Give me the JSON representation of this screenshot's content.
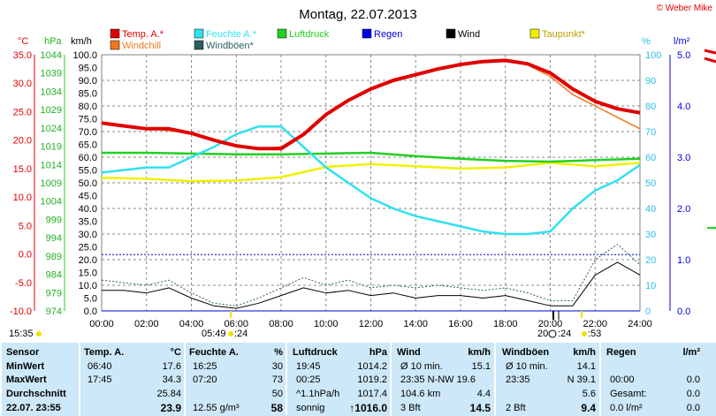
{
  "title": "Montag, 22.07.2013",
  "copyright": "© Weber Mike",
  "left_axis_units": {
    "temp": "°C",
    "press": "hPa",
    "speed": "km/h"
  },
  "right_axis_units": {
    "humidity": "%",
    "rain": "l/m²"
  },
  "legend": [
    {
      "label": "Temp. A.*",
      "color": "#e00000"
    },
    {
      "label": "Windchill",
      "color": "#f07820"
    },
    {
      "label": "Feuchte A.*",
      "color": "#30e0f0"
    },
    {
      "label": "Windböen*",
      "color": "#2a5f60"
    },
    {
      "label": "Luftdruck",
      "color": "#20d020"
    },
    {
      "label": "Regen",
      "color": "#0000e0"
    },
    {
      "label": "Wind",
      "color": "#000000"
    },
    {
      "label": "Taupunkt*",
      "color": "#f0f000"
    }
  ],
  "time_marks": {
    "left_time": "15:35",
    "sunrise": "05:49",
    "sunrise_sfx": ":24",
    "sunset": "20:",
    "sunset_sfx": ":24",
    "moon_sfx": ":53"
  },
  "chart_data": {
    "type": "line",
    "title": "Montag, 22.07.2013",
    "x_ticks": [
      "00:00",
      "02:00",
      "04:00",
      "06:00",
      "08:00",
      "10:00",
      "12:00",
      "14:00",
      "16:00",
      "18:00",
      "20:00",
      "22:00",
      "24:00"
    ],
    "y_left_temp_ticks": [
      "35.0",
      "30.0",
      "25.0",
      "20.0",
      "15.0",
      "10.0",
      "5.0",
      "0.0",
      "-5.0",
      "-10.0"
    ],
    "y_left_press_ticks": [
      "1044",
      "1039",
      "1034",
      "1029",
      "1024",
      "1019",
      "1014",
      "1009",
      "1004",
      "999",
      "994",
      "989",
      "984",
      "979",
      "974"
    ],
    "y_left_speed_ticks": [
      "100.0",
      "95.0",
      "90.0",
      "85.0",
      "80.0",
      "75.0",
      "70.0",
      "65.0",
      "60.0",
      "55.0",
      "50.0",
      "45.0",
      "40.0",
      "35.0",
      "30.0",
      "25.0",
      "20.0",
      "15.0",
      "10.0",
      "5.0",
      "0.0"
    ],
    "y_right_humidity_ticks": [
      "100",
      "90",
      "80",
      "70",
      "60",
      "50",
      "40",
      "30",
      "20",
      "10",
      "0"
    ],
    "y_right_rain_ticks": [
      "5.0",
      "4.0",
      "3.0",
      "2.0",
      "1.0",
      "0.0"
    ],
    "ylim_temp": [
      -10,
      35
    ],
    "ylim_press": [
      974,
      1044
    ],
    "ylim_speed": [
      0,
      100
    ],
    "ylim_humidity": [
      0,
      100
    ],
    "ylim_rain": [
      0,
      5
    ],
    "series": [
      {
        "name": "Temp. A.*",
        "axis": "temp",
        "x_hours": [
          0,
          1,
          2,
          3,
          4,
          5,
          6,
          7,
          8,
          9,
          10,
          11,
          12,
          13,
          14,
          15,
          16,
          17,
          18,
          19,
          20,
          21,
          22,
          23,
          24
        ],
        "values": [
          23.0,
          22.5,
          22.0,
          22.0,
          21.2,
          20.0,
          19.0,
          18.5,
          18.5,
          21.0,
          24.5,
          27.0,
          29.0,
          30.5,
          31.5,
          32.5,
          33.3,
          33.8,
          34.0,
          33.4,
          31.8,
          29.0,
          26.8,
          25.5,
          24.8
        ]
      },
      {
        "name": "Windchill",
        "axis": "temp",
        "x_hours": [
          0,
          4,
          6,
          7,
          8,
          9,
          10,
          12,
          14,
          16,
          18,
          19,
          20,
          21,
          22,
          23,
          24
        ],
        "values": [
          23.0,
          21.2,
          19.0,
          18.5,
          18.8,
          21.2,
          24.6,
          29.0,
          31.5,
          33.3,
          34.0,
          33.2,
          31.2,
          28.0,
          26.0,
          24.0,
          22.0
        ]
      },
      {
        "name": "Feuchte A.*",
        "axis": "humidity",
        "x_hours": [
          0,
          1,
          2,
          3,
          4,
          5,
          6,
          7,
          8,
          9,
          10,
          11,
          12,
          13,
          14,
          15,
          16,
          17,
          18,
          19,
          20,
          21,
          22,
          23,
          24
        ],
        "values": [
          54,
          55,
          56,
          56,
          60,
          64,
          69,
          72,
          72,
          64,
          56,
          50,
          44,
          40,
          37,
          35,
          33,
          31,
          30,
          30,
          31,
          40,
          47,
          51,
          57
        ]
      },
      {
        "name": "Luftdruck",
        "axis": "press",
        "x_hours": [
          0,
          2,
          4,
          6,
          8,
          10,
          12,
          14,
          16,
          18,
          20,
          22,
          24
        ],
        "values": [
          1017.2,
          1017.2,
          1017.0,
          1016.8,
          1016.8,
          1017.0,
          1017.2,
          1016.3,
          1015.6,
          1015.0,
          1014.8,
          1015.2,
          1015.6
        ]
      },
      {
        "name": "Taupunkt*",
        "axis": "temp",
        "x_hours": [
          0,
          2,
          4,
          6,
          8,
          10,
          12,
          14,
          16,
          18,
          20,
          22,
          24
        ],
        "values": [
          13.4,
          13.2,
          12.8,
          12.9,
          13.5,
          15.3,
          15.8,
          15.4,
          15.0,
          15.2,
          16.0,
          15.4,
          16.0
        ]
      },
      {
        "name": "Wind",
        "axis": "speed",
        "x_hours": [
          0,
          1,
          2,
          3,
          4,
          5,
          6,
          7,
          8,
          9,
          10,
          11,
          12,
          13,
          14,
          15,
          16,
          17,
          18,
          19,
          20,
          21,
          22,
          23,
          24
        ],
        "values": [
          8,
          8,
          7,
          9,
          5,
          2,
          1,
          3,
          6,
          9,
          7,
          8,
          6,
          7,
          5,
          6,
          6,
          5,
          6,
          4,
          2,
          2,
          14,
          19,
          14
        ]
      },
      {
        "name": "Windböen*",
        "axis": "speed",
        "x_hours": [
          0,
          1,
          2,
          3,
          4,
          5,
          6,
          7,
          8,
          9,
          10,
          11,
          12,
          13,
          14,
          15,
          16,
          17,
          18,
          19,
          20,
          21,
          22,
          23,
          24
        ],
        "values": [
          12,
          11,
          10,
          12,
          7,
          3,
          2,
          5,
          9,
          13,
          10,
          12,
          9,
          10,
          9,
          10,
          9,
          8,
          9,
          7,
          4,
          4,
          20,
          26,
          18
        ]
      },
      {
        "name": "Regen",
        "axis": "rain",
        "x_hours": [
          0,
          24
        ],
        "values": [
          0,
          0
        ]
      }
    ],
    "reference_line_speed": 22
  },
  "stats": {
    "sensor": {
      "header": "Sensor",
      "rows": [
        "MinWert",
        "MaxWert",
        "Durchschnitt",
        "22.07.  23:55"
      ]
    },
    "temp": {
      "header": "Temp. A.",
      "unit": "°C",
      "rows": [
        [
          "06:40",
          "17.6"
        ],
        [
          "17:45",
          "34.3"
        ],
        [
          "",
          "25.84"
        ],
        [
          "",
          "23.9"
        ]
      ]
    },
    "humidity": {
      "header": "Feuchte A.",
      "unit": "%",
      "rows": [
        [
          "16:25",
          "30"
        ],
        [
          "07:20",
          "73"
        ],
        [
          "",
          "50"
        ],
        [
          "12.55 g/m³",
          "58"
        ]
      ]
    },
    "pressure": {
      "header": "Luftdruck",
      "unit": "hPa",
      "rows": [
        [
          "19:45",
          "1014.2"
        ],
        [
          "00:25",
          "1019.2"
        ],
        [
          "^1.1hPa/h",
          "1017.4"
        ],
        [
          "sonnig",
          "↑1016.0"
        ]
      ]
    },
    "wind": {
      "header": "Wind",
      "unit": "km/h",
      "rows": [
        [
          "Ø 10 min.",
          "15.1"
        ],
        [
          "23:35    N-NW 19.6",
          ""
        ],
        [
          "104.6 km",
          "4.4"
        ],
        [
          "3 Bft",
          "14.5"
        ]
      ]
    },
    "gusts": {
      "header": "Windböen",
      "unit": "km/h",
      "rows": [
        [
          "Ø 10 min.",
          "14.1"
        ],
        [
          "23:35",
          "N 39.1"
        ],
        [
          "",
          "5.6"
        ],
        [
          "2 Bft",
          "9.4"
        ]
      ]
    },
    "rain": {
      "header": "Regen",
      "unit": "l/m²",
      "rows": [
        [
          "",
          ""
        ],
        [
          "00:00",
          "0.0"
        ],
        [
          "Gesamt:",
          "0.0"
        ],
        [
          "0.0 l/m²",
          "0.0"
        ]
      ]
    }
  }
}
